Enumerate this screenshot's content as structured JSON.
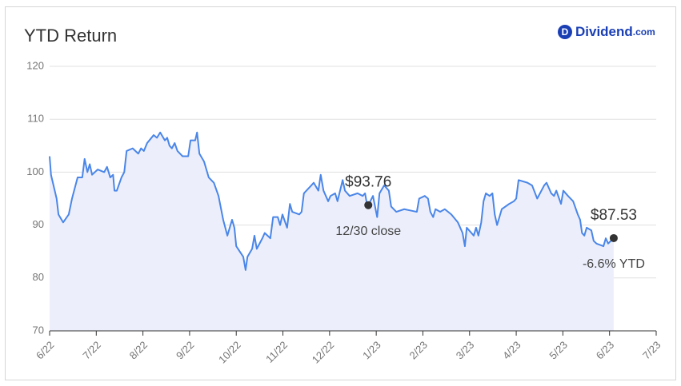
{
  "brand": {
    "icon": "D",
    "name": "Dividend",
    "suffix": ".com"
  },
  "chart_data": {
    "type": "area",
    "title": "YTD Return",
    "color": "#4a86e8",
    "fill": "#eceffb",
    "grid": true,
    "xlim": [
      0,
      13
    ],
    "ylim": [
      70,
      120
    ],
    "yticks": [
      70,
      80,
      90,
      100,
      110,
      120
    ],
    "xticks": [
      {
        "value": 0,
        "label": "6/22"
      },
      {
        "value": 1,
        "label": "7/22"
      },
      {
        "value": 2,
        "label": "8/22"
      },
      {
        "value": 3,
        "label": "9/22"
      },
      {
        "value": 4,
        "label": "10/22"
      },
      {
        "value": 5,
        "label": "11/22"
      },
      {
        "value": 6,
        "label": "12/22"
      },
      {
        "value": 7,
        "label": "1/23"
      },
      {
        "value": 8,
        "label": "2/23"
      },
      {
        "value": 9,
        "label": "3/23"
      },
      {
        "value": 10,
        "label": "4/23"
      },
      {
        "value": 11,
        "label": "5/23"
      },
      {
        "value": 12,
        "label": "6/23"
      },
      {
        "value": 13,
        "label": "7/23"
      }
    ],
    "x": [
      0.0,
      0.03,
      0.15,
      0.19,
      0.29,
      0.41,
      0.48,
      0.6,
      0.7,
      0.75,
      0.81,
      0.86,
      0.91,
      1.03,
      1.17,
      1.23,
      1.3,
      1.36,
      1.39,
      1.44,
      1.54,
      1.6,
      1.65,
      1.78,
      1.9,
      1.96,
      2.02,
      2.09,
      2.23,
      2.3,
      2.37,
      2.47,
      2.52,
      2.57,
      2.62,
      2.68,
      2.74,
      2.85,
      2.97,
      3.02,
      3.12,
      3.16,
      3.21,
      3.31,
      3.41,
      3.52,
      3.62,
      3.72,
      3.81,
      3.91,
      3.96,
      4.0,
      4.15,
      4.2,
      4.24,
      4.34,
      4.39,
      4.44,
      4.56,
      4.61,
      4.73,
      4.79,
      4.89,
      4.94,
      4.99,
      5.09,
      5.15,
      5.2,
      5.35,
      5.4,
      5.45,
      5.61,
      5.66,
      5.76,
      5.81,
      5.87,
      5.97,
      6.02,
      6.12,
      6.17,
      6.28,
      6.33,
      6.43,
      6.6,
      6.71,
      6.76,
      6.79,
      6.83,
      6.93,
      7.02,
      7.07,
      7.17,
      7.27,
      7.32,
      7.43,
      7.6,
      7.87,
      7.92,
      8.04,
      8.11,
      8.16,
      8.22,
      8.27,
      8.37,
      8.47,
      8.61,
      8.75,
      8.85,
      8.9,
      8.94,
      9.09,
      9.14,
      9.19,
      9.25,
      9.3,
      9.35,
      9.43,
      9.49,
      9.54,
      9.59,
      9.69,
      9.85,
      9.95,
      10.0,
      10.05,
      10.24,
      10.34,
      10.45,
      10.6,
      10.65,
      10.75,
      10.81,
      10.86,
      10.96,
      11.01,
      11.11,
      11.22,
      11.32,
      11.37,
      11.41,
      11.46,
      11.51,
      11.61,
      11.66,
      11.72,
      11.87,
      11.92,
      11.97,
      12.09
    ],
    "values": [
      103,
      99.5,
      95,
      92,
      90.5,
      92,
      95,
      99,
      99,
      102.5,
      100,
      101.5,
      99.5,
      100.5,
      100,
      101,
      99,
      99.5,
      96.5,
      96.5,
      99,
      100,
      104,
      104.5,
      103.5,
      104.5,
      104,
      105.5,
      107,
      106.5,
      107.5,
      106,
      106.5,
      105,
      104.5,
      105.5,
      104,
      103,
      103,
      106,
      106,
      107.5,
      103.5,
      102,
      99,
      98,
      95.5,
      91,
      88,
      91,
      89.5,
      86,
      84,
      81.5,
      84,
      85.5,
      88,
      85.5,
      87.5,
      88.5,
      87.5,
      91.5,
      91.5,
      90,
      92,
      89.5,
      94,
      92.5,
      92,
      92.5,
      96,
      97.5,
      98,
      96.5,
      99.5,
      96.5,
      94.5,
      95.5,
      96,
      94.5,
      98.5,
      96.5,
      95.5,
      96,
      95.5,
      96,
      94.5,
      93.76,
      95.5,
      91.5,
      96,
      97.5,
      96.5,
      93.5,
      92.5,
      93,
      92.5,
      95,
      95.5,
      95,
      92.5,
      91.5,
      93,
      92.5,
      93,
      92,
      90.5,
      88.5,
      86,
      89.5,
      88,
      89.5,
      88,
      90.5,
      94.5,
      96,
      95.5,
      96,
      92,
      90,
      93,
      94,
      94.5,
      95,
      98.5,
      98,
      97.5,
      95,
      97.5,
      98,
      96,
      95.5,
      96.5,
      94,
      96.5,
      95.5,
      94.5,
      92,
      91,
      88.5,
      88,
      89.5,
      89,
      87,
      86.5,
      86,
      87.5,
      86.5,
      87.53
    ],
    "annotations": [
      {
        "x": 6.83,
        "y": 93.76,
        "label": "$93.76",
        "note": "12/30 close"
      },
      {
        "x": 12.09,
        "y": 87.53,
        "label": "$87.53",
        "note": "-6.6% YTD"
      }
    ]
  }
}
